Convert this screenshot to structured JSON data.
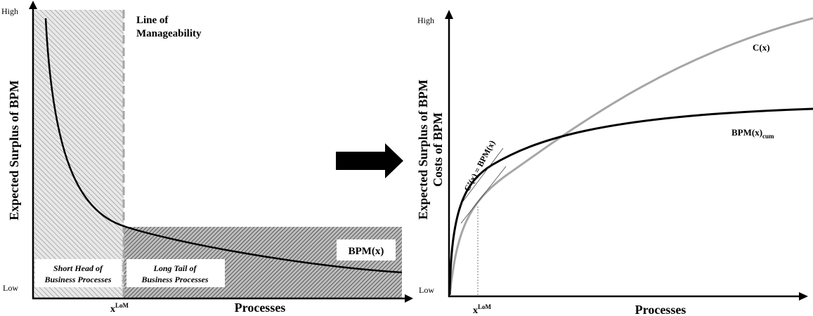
{
  "left_chart": {
    "y_axis_label": "Expected Surplus of BPM",
    "y_high": "High",
    "y_low": "Low",
    "x_axis_label": "Processes",
    "x_marker": "x",
    "x_marker_sup": "LoM",
    "line_label_1": "Line of",
    "line_label_2": "Manageability",
    "curve_label": "BPM(x)",
    "head_label_1": "Short Head of",
    "head_label_2": "Business Processes",
    "tail_label_1": "Long Tail of",
    "tail_label_2": "Business Processes"
  },
  "right_chart": {
    "y_axis_label_1": "Expected Surplus of BPM",
    "y_axis_label_2": "Costs of BPM",
    "y_high": "High",
    "y_low": "Low",
    "x_axis_label": "Processes",
    "x_marker": "x",
    "x_marker_sup": "LoM",
    "cost_label": "C(x)",
    "bpm_label": "BPM(x)",
    "bpm_label_sub": "cum",
    "tangent_label": "C’(x) = BPM(x)"
  },
  "colors": {
    "curve": "#000000",
    "cost_curve": "#a6a6a6",
    "dashed_line": "#a6a6a6",
    "arrow": "#000000"
  }
}
